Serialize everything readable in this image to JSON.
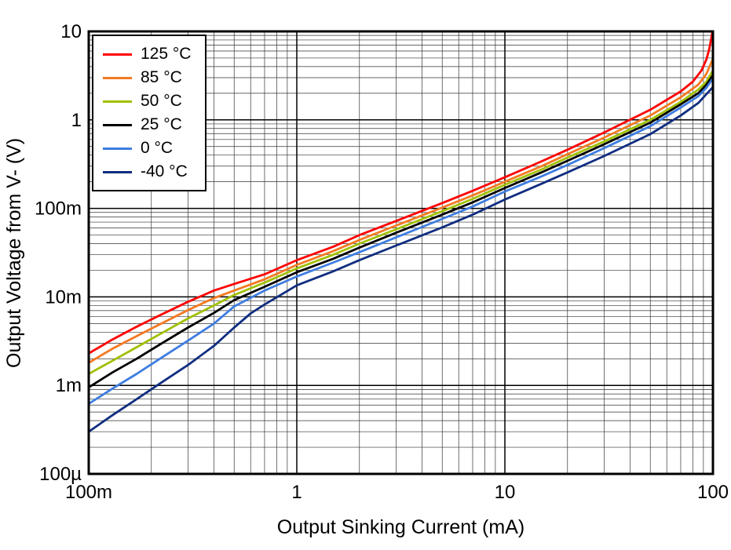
{
  "chart_data": {
    "type": "line",
    "title": "",
    "xlabel": "Output Sinking Current (mA)",
    "ylabel": "Output Voltage from V- (V)",
    "x_scale": "log",
    "y_scale": "log",
    "xlim": [
      0.1,
      100
    ],
    "ylim": [
      0.0001,
      10
    ],
    "grid": "major+minor log grid, black lines",
    "legend_position": "top-left",
    "x_ticks": [
      {
        "value": 0.1,
        "label": "100m"
      },
      {
        "value": 1,
        "label": "1"
      },
      {
        "value": 10,
        "label": "10"
      },
      {
        "value": 100,
        "label": "100"
      }
    ],
    "y_ticks": [
      {
        "value": 0.0001,
        "label": "100µ"
      },
      {
        "value": 0.001,
        "label": "1m"
      },
      {
        "value": 0.01,
        "label": "10m"
      },
      {
        "value": 0.1,
        "label": "100m"
      },
      {
        "value": 1,
        "label": "1"
      },
      {
        "value": 10,
        "label": "10"
      }
    ],
    "series": [
      {
        "name": "125 °C",
        "color": "#ff0000",
        "x": [
          0.1,
          0.13,
          0.17,
          0.22,
          0.3,
          0.4,
          0.5,
          0.7,
          1,
          1.5,
          2,
          3,
          5,
          7,
          10,
          15,
          20,
          30,
          50,
          70,
          80,
          88,
          93,
          96,
          98,
          99.5
        ],
        "y": [
          0.0023,
          0.0033,
          0.0046,
          0.0062,
          0.0088,
          0.0118,
          0.014,
          0.018,
          0.026,
          0.037,
          0.05,
          0.072,
          0.115,
          0.158,
          0.225,
          0.34,
          0.46,
          0.72,
          1.3,
          2.1,
          2.7,
          3.6,
          4.8,
          6.3,
          8.2,
          10
        ]
      },
      {
        "name": "85 °C",
        "color": "#f57921",
        "x": [
          0.1,
          0.13,
          0.17,
          0.22,
          0.3,
          0.4,
          0.5,
          0.7,
          1,
          1.5,
          2,
          3,
          5,
          7,
          10,
          15,
          20,
          30,
          50,
          70,
          85,
          93,
          100
        ],
        "y": [
          0.0018,
          0.0026,
          0.0036,
          0.0049,
          0.0071,
          0.0097,
          0.0118,
          0.0158,
          0.023,
          0.033,
          0.044,
          0.064,
          0.102,
          0.14,
          0.2,
          0.3,
          0.41,
          0.63,
          1.12,
          1.8,
          2.5,
          3.3,
          4.9
        ]
      },
      {
        "name": "50 °C",
        "color": "#a0c000",
        "x": [
          0.1,
          0.13,
          0.17,
          0.22,
          0.3,
          0.4,
          0.5,
          0.7,
          1,
          1.5,
          2,
          3,
          5,
          7,
          10,
          15,
          20,
          30,
          50,
          70,
          85,
          93,
          100
        ],
        "y": [
          0.00135,
          0.0019,
          0.0027,
          0.0038,
          0.0057,
          0.008,
          0.0105,
          0.0145,
          0.021,
          0.03,
          0.04,
          0.058,
          0.093,
          0.128,
          0.185,
          0.275,
          0.375,
          0.57,
          1.0,
          1.6,
          2.2,
          2.7,
          3.6
        ]
      },
      {
        "name": "25 °C",
        "color": "#000000",
        "x": [
          0.1,
          0.13,
          0.17,
          0.22,
          0.3,
          0.4,
          0.5,
          0.7,
          1,
          1.5,
          2,
          3,
          5,
          7,
          10,
          15,
          20,
          30,
          50,
          70,
          85,
          93,
          100
        ],
        "y": [
          0.00095,
          0.0014,
          0.002,
          0.0029,
          0.0045,
          0.0066,
          0.0092,
          0.013,
          0.019,
          0.027,
          0.036,
          0.053,
          0.085,
          0.117,
          0.17,
          0.255,
          0.345,
          0.53,
          0.93,
          1.5,
          2.0,
          2.5,
          3.2
        ]
      },
      {
        "name": "0 °C",
        "color": "#3e7de0",
        "x": [
          0.1,
          0.13,
          0.17,
          0.22,
          0.3,
          0.4,
          0.5,
          0.7,
          1,
          1.5,
          2,
          3,
          5,
          7,
          10,
          15,
          20,
          30,
          50,
          70,
          85,
          93,
          100
        ],
        "y": [
          0.00062,
          0.00092,
          0.00135,
          0.002,
          0.0032,
          0.005,
          0.0078,
          0.0118,
          0.017,
          0.0245,
          0.032,
          0.047,
          0.076,
          0.105,
          0.155,
          0.23,
          0.31,
          0.48,
          0.85,
          1.38,
          1.85,
          2.3,
          2.95
        ]
      },
      {
        "name": "-40 °C",
        "color": "#102d80",
        "x": [
          0.1,
          0.13,
          0.17,
          0.22,
          0.3,
          0.4,
          0.5,
          0.6,
          0.7,
          1,
          1.5,
          2,
          3,
          5,
          7,
          10,
          15,
          20,
          30,
          50,
          70,
          85,
          93,
          100
        ],
        "y": [
          0.0003,
          0.00046,
          0.0007,
          0.00105,
          0.0017,
          0.0028,
          0.0045,
          0.0065,
          0.0082,
          0.0135,
          0.0195,
          0.026,
          0.038,
          0.061,
          0.085,
          0.126,
          0.19,
          0.255,
          0.39,
          0.69,
          1.12,
          1.55,
          1.95,
          2.35
        ]
      }
    ]
  }
}
